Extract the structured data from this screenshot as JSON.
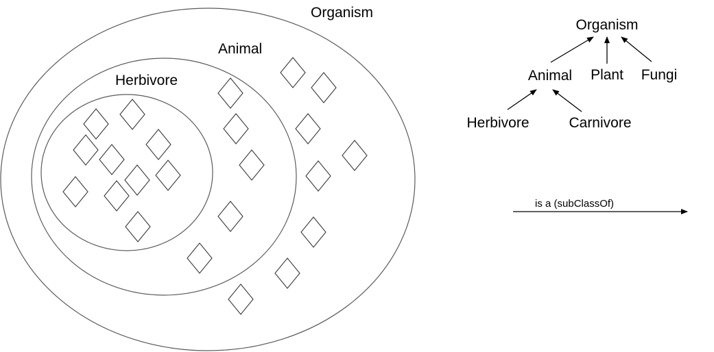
{
  "venn": {
    "organism_label": "Organism",
    "animal_label": "Animal",
    "herbivore_label": "Herbivore"
  },
  "tree": {
    "organism": "Organism",
    "animal": "Animal",
    "plant": "Plant",
    "fungi": "Fungi",
    "herbivore": "Herbivore",
    "carnivore": "Carnivore"
  },
  "legend": {
    "label": "is a (subClassOf)"
  },
  "colors": {
    "ring": "#5a5a5a",
    "member": "#3a3a3a",
    "edge": "#000000"
  }
}
